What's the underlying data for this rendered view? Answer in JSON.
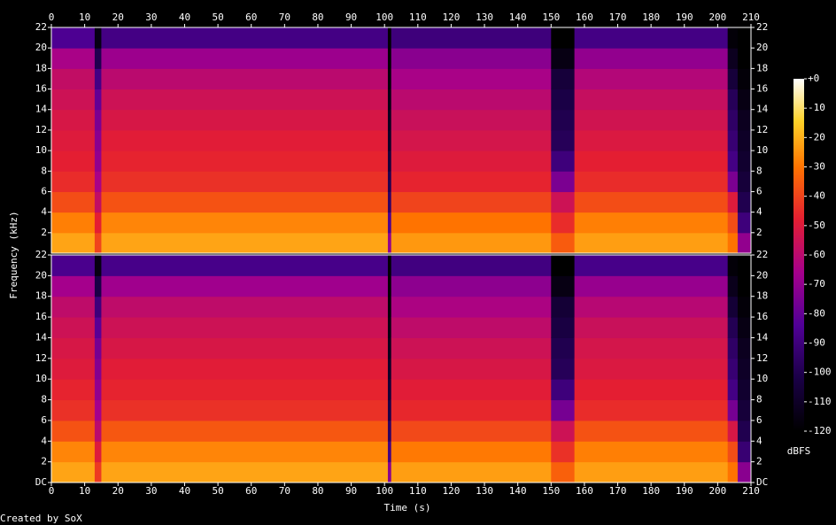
{
  "chart_data": {
    "type": "spectrogram",
    "xlabel": "Time (s)",
    "ylabel": "Frequency (kHz)",
    "footer": "Created by SoX",
    "xlim": [
      0,
      210
    ],
    "xticks": [
      0,
      10,
      20,
      30,
      40,
      50,
      60,
      70,
      80,
      90,
      100,
      110,
      120,
      130,
      140,
      150,
      160,
      170,
      180,
      190,
      200,
      210
    ],
    "x_edges": [
      0,
      13,
      15,
      101,
      102,
      150,
      157,
      203,
      206,
      210
    ],
    "bins": [
      0,
      2,
      4,
      6,
      8,
      10,
      12,
      14,
      16,
      18,
      20,
      22
    ],
    "ylim": [
      0,
      22
    ],
    "channels": [
      {
        "yticks": [
          2,
          4,
          6,
          8,
          10,
          12,
          14,
          16,
          18,
          20,
          22
        ],
        "values": [
          [
            -22,
            -28,
            -38,
            -45,
            -48,
            -50,
            -52,
            -55,
            -58,
            -65,
            -85
          ],
          [
            -40,
            -48,
            -58,
            -65,
            -70,
            -72,
            -75,
            -80,
            -88,
            -100,
            -115
          ],
          [
            -22,
            -27,
            -37,
            -44,
            -47,
            -49,
            -52,
            -55,
            -60,
            -68,
            -88
          ],
          [
            -70,
            -85,
            -95,
            -100,
            -105,
            -110,
            -112,
            -115,
            -118,
            -120,
            -120
          ],
          [
            -24,
            -30,
            -40,
            -47,
            -50,
            -53,
            -56,
            -60,
            -65,
            -72,
            -90
          ],
          [
            -35,
            -45,
            -55,
            -75,
            -90,
            -98,
            -100,
            -102,
            -105,
            -115,
            -120
          ],
          [
            -23,
            -28,
            -38,
            -45,
            -48,
            -51,
            -54,
            -57,
            -62,
            -70,
            -88
          ],
          [
            -30,
            -38,
            -50,
            -75,
            -88,
            -92,
            -95,
            -98,
            -105,
            -112,
            -118
          ],
          [
            -70,
            -90,
            -100,
            -105,
            -108,
            -110,
            -112,
            -115,
            -118,
            -120,
            -120
          ]
        ]
      },
      {
        "yticks": [
          {
            "value": 0,
            "label": "DC"
          },
          2,
          4,
          6,
          8,
          10,
          12,
          14,
          16,
          18,
          20,
          22
        ],
        "values": [
          [
            -22,
            -27,
            -37,
            -44,
            -47,
            -50,
            -52,
            -55,
            -59,
            -66,
            -86
          ],
          [
            -42,
            -50,
            -60,
            -66,
            -70,
            -73,
            -76,
            -82,
            -90,
            -102,
            -116
          ],
          [
            -22,
            -27,
            -36,
            -44,
            -47,
            -49,
            -52,
            -55,
            -59,
            -67,
            -87
          ],
          [
            -72,
            -88,
            -96,
            -102,
            -106,
            -110,
            -113,
            -116,
            -118,
            -120,
            -120
          ],
          [
            -23,
            -29,
            -39,
            -46,
            -49,
            -52,
            -55,
            -59,
            -64,
            -71,
            -89
          ],
          [
            -34,
            -44,
            -55,
            -76,
            -90,
            -98,
            -100,
            -103,
            -106,
            -115,
            -120
          ],
          [
            -23,
            -28,
            -37,
            -45,
            -48,
            -51,
            -53,
            -56,
            -61,
            -69,
            -87
          ],
          [
            -30,
            -38,
            -52,
            -76,
            -88,
            -92,
            -95,
            -99,
            -106,
            -113,
            -118
          ],
          [
            -72,
            -92,
            -100,
            -105,
            -108,
            -110,
            -112,
            -115,
            -118,
            -120,
            -120
          ]
        ]
      }
    ],
    "colorbar": {
      "label": "dBFS",
      "lim": [
        -120,
        0
      ],
      "ticks": [
        {
          "value": 0,
          "label": "+0"
        },
        -10,
        -20,
        -30,
        -40,
        -50,
        -60,
        -70,
        -80,
        -90,
        -100,
        -110,
        -120
      ]
    }
  }
}
